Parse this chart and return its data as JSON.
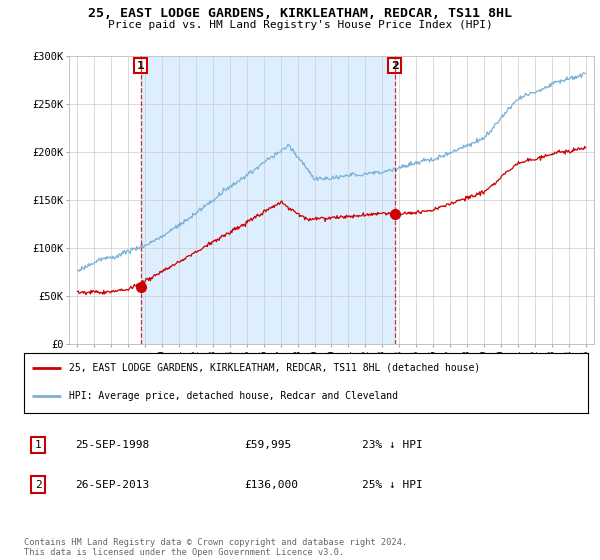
{
  "title_line1": "25, EAST LODGE GARDENS, KIRKLEATHAM, REDCAR, TS11 8HL",
  "title_line2": "Price paid vs. HM Land Registry's House Price Index (HPI)",
  "background_color": "#ffffff",
  "plot_bg_color": "#ffffff",
  "shade_color": "#ddeeff",
  "grid_color": "#cccccc",
  "hpi_color": "#7ab0d4",
  "price_color": "#cc0000",
  "sale1_date_num": 1998.73,
  "sale1_price": 59995,
  "sale2_date_num": 2013.73,
  "sale2_price": 136000,
  "legend_entry1": "25, EAST LODGE GARDENS, KIRKLEATHAM, REDCAR, TS11 8HL (detached house)",
  "legend_entry2": "HPI: Average price, detached house, Redcar and Cleveland",
  "table_row1": [
    "1",
    "25-SEP-1998",
    "£59,995",
    "23% ↓ HPI"
  ],
  "table_row2": [
    "2",
    "26-SEP-2013",
    "£136,000",
    "25% ↓ HPI"
  ],
  "copyright_text": "Contains HM Land Registry data © Crown copyright and database right 2024.\nThis data is licensed under the Open Government Licence v3.0.",
  "ylim": [
    0,
    300000
  ],
  "xlim_start": 1994.5,
  "xlim_end": 2025.5
}
